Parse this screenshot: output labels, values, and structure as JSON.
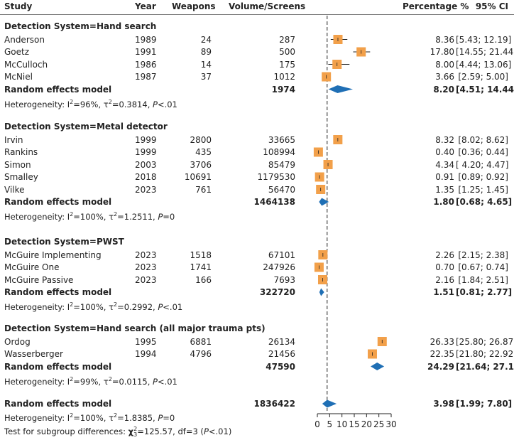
{
  "header": {
    "study": "Study",
    "year": "Year",
    "weapons": "Weapons",
    "volume": "Volume/Screens",
    "percentage": "Percentage %",
    "ci": "95% CI"
  },
  "groups": [
    {
      "title": "Detection System=Hand search",
      "rows": [
        {
          "study": "Anderson",
          "year": "1989",
          "weapons": "24",
          "volume": "287",
          "est": "8.36",
          "ci": "[5.43; 12.19]"
        },
        {
          "study": "Goetz",
          "year": "1991",
          "weapons": "89",
          "volume": "500",
          "est": "17.80",
          "ci": "[14.55; 21.44]"
        },
        {
          "study": "McCulloch",
          "year": "1986",
          "weapons": "14",
          "volume": "175",
          "est": "8.00",
          "ci": "[4.44; 13.06]"
        },
        {
          "study": "McNiel",
          "year": "1987",
          "weapons": "37",
          "volume": "1012",
          "est": "3.66",
          "ci": "[2.59; 5.00]"
        }
      ],
      "summary": {
        "label": "Random effects model",
        "volume": "1974",
        "est": "8.20",
        "ci": "[4.51; 14.44]"
      },
      "heterogeneity": {
        "prefix": "Heterogeneity: ",
        "i2": "96%",
        "tau2": "0.3814",
        "p": "<.01"
      }
    },
    {
      "title": "Detection System=Metal detector",
      "rows": [
        {
          "study": "Irvin",
          "year": "1999",
          "weapons": "2800",
          "volume": "33665",
          "est": "8.32",
          "ci": "[8.02; 8.62]"
        },
        {
          "study": "Rankins",
          "year": "1999",
          "weapons": "435",
          "volume": "108994",
          "est": "0.40",
          "ci": "[0.36; 0.44]"
        },
        {
          "study": "Simon",
          "year": "2003",
          "weapons": "3706",
          "volume": "85479",
          "est": "4.34",
          "ci": "[ 4.20; 4.47]"
        },
        {
          "study": "Smalley",
          "year": "2018",
          "weapons": "10691",
          "volume": "1179530",
          "est": "0.91",
          "ci": "[0.89; 0.92]"
        },
        {
          "study": "Vilke",
          "year": "2023",
          "weapons": "761",
          "volume": "56470",
          "est": "1.35",
          "ci": "[1.25; 1.45]"
        }
      ],
      "summary": {
        "label": "Random effects model",
        "volume": "1464138",
        "est": "1.80",
        "ci": "[0.68; 4.65]"
      },
      "heterogeneity": {
        "prefix": "Heterogeneity: ",
        "i2": "100%",
        "tau2": "1.2511",
        "p": "=0"
      }
    },
    {
      "title": "Detection System=PWST",
      "rows": [
        {
          "study": "McGuire Implementing",
          "year": "2023",
          "weapons": "1518",
          "volume": "67101",
          "est": "2.26",
          "ci": "[2.15; 2.38]"
        },
        {
          "study": "McGuire One",
          "year": "2023",
          "weapons": "1741",
          "volume": "247926",
          "est": "0.70",
          "ci": "[0.67; 0.74]"
        },
        {
          "study": "McGuire Passive",
          "year": "2023",
          "weapons": "166",
          "volume": "7693",
          "est": "2.16",
          "ci": "[1.84; 2.51]"
        }
      ],
      "summary": {
        "label": "Random effects model",
        "volume": "322720",
        "est": "1.51",
        "ci": "[0.81; 2.77]"
      },
      "heterogeneity": {
        "prefix": "Heterogeneity: ",
        "i2": "100%",
        "tau2": "0.2992",
        "p": "<.01"
      }
    },
    {
      "title": "Detection System=Hand search (all major trauma pts)",
      "rows": [
        {
          "study": "Ordog",
          "year": "1995",
          "weapons": "6881",
          "volume": "26134",
          "est": "26.33",
          "ci": "[25.80; 26.87]"
        },
        {
          "study": "Wasserberger",
          "year": "1994",
          "weapons": "4796",
          "volume": "21456",
          "est": "22.35",
          "ci": "[21.80; 22.92]"
        }
      ],
      "summary": {
        "label": "Random effects model",
        "volume": "47590",
        "est": "24.29",
        "ci": "[21.64; 27.15]"
      },
      "heterogeneity": {
        "prefix": "Heterogeneity: ",
        "i2": "99%",
        "tau2": "0.0115",
        "p": "<.01"
      }
    }
  ],
  "overall": {
    "label": "Random effects model",
    "volume": "1836422",
    "est": "3.98",
    "ci": "[1.99; 7.80]",
    "heterogeneity": {
      "prefix": "Heterogeneity: ",
      "i2": "100%",
      "tau2": "1.8385",
      "p": "=0"
    },
    "subgroup_test": {
      "prefix": "Test for subgroup differences: ",
      "chi2": "125.57",
      "df": "3",
      "p": "<.01"
    }
  },
  "colors": {
    "square": "#f2a04a",
    "diamond": "#1f6fb5",
    "line": "#222222",
    "rule": "#777777"
  },
  "chart_data": {
    "type": "forest",
    "title": "",
    "xlabel": "Percentage %",
    "xlim": [
      0,
      30
    ],
    "x_ticks": [
      0,
      5,
      10,
      15,
      20,
      25,
      30
    ],
    "reference_line": 3.98,
    "studies": [
      {
        "group": "Hand search",
        "study": "Anderson",
        "est": 8.36,
        "lo": 5.43,
        "hi": 12.19
      },
      {
        "group": "Hand search",
        "study": "Goetz",
        "est": 17.8,
        "lo": 14.55,
        "hi": 21.44
      },
      {
        "group": "Hand search",
        "study": "McCulloch",
        "est": 8.0,
        "lo": 4.44,
        "hi": 13.06
      },
      {
        "group": "Hand search",
        "study": "McNiel",
        "est": 3.66,
        "lo": 2.59,
        "hi": 5.0
      },
      {
        "group": "Metal detector",
        "study": "Irvin",
        "est": 8.32,
        "lo": 8.02,
        "hi": 8.62
      },
      {
        "group": "Metal detector",
        "study": "Rankins",
        "est": 0.4,
        "lo": 0.36,
        "hi": 0.44
      },
      {
        "group": "Metal detector",
        "study": "Simon",
        "est": 4.34,
        "lo": 4.2,
        "hi": 4.47
      },
      {
        "group": "Metal detector",
        "study": "Smalley",
        "est": 0.91,
        "lo": 0.89,
        "hi": 0.92
      },
      {
        "group": "Metal detector",
        "study": "Vilke",
        "est": 1.35,
        "lo": 1.25,
        "hi": 1.45
      },
      {
        "group": "PWST",
        "study": "McGuire Implementing",
        "est": 2.26,
        "lo": 2.15,
        "hi": 2.38
      },
      {
        "group": "PWST",
        "study": "McGuire One",
        "est": 0.7,
        "lo": 0.67,
        "hi": 0.74
      },
      {
        "group": "PWST",
        "study": "McGuire Passive",
        "est": 2.16,
        "lo": 1.84,
        "hi": 2.51
      },
      {
        "group": "Hand search (all major trauma pts)",
        "study": "Ordog",
        "est": 26.33,
        "lo": 25.8,
        "hi": 26.87
      },
      {
        "group": "Hand search (all major trauma pts)",
        "study": "Wasserberger",
        "est": 22.35,
        "lo": 21.8,
        "hi": 22.92
      }
    ],
    "summaries": [
      {
        "group": "Hand search",
        "est": 8.2,
        "lo": 4.51,
        "hi": 14.44
      },
      {
        "group": "Metal detector",
        "est": 1.8,
        "lo": 0.68,
        "hi": 4.65
      },
      {
        "group": "PWST",
        "est": 1.51,
        "lo": 0.81,
        "hi": 2.77
      },
      {
        "group": "Hand search (all major trauma pts)",
        "est": 24.29,
        "lo": 21.64,
        "hi": 27.15
      },
      {
        "group": "Overall",
        "est": 3.98,
        "lo": 1.99,
        "hi": 7.8
      }
    ]
  }
}
